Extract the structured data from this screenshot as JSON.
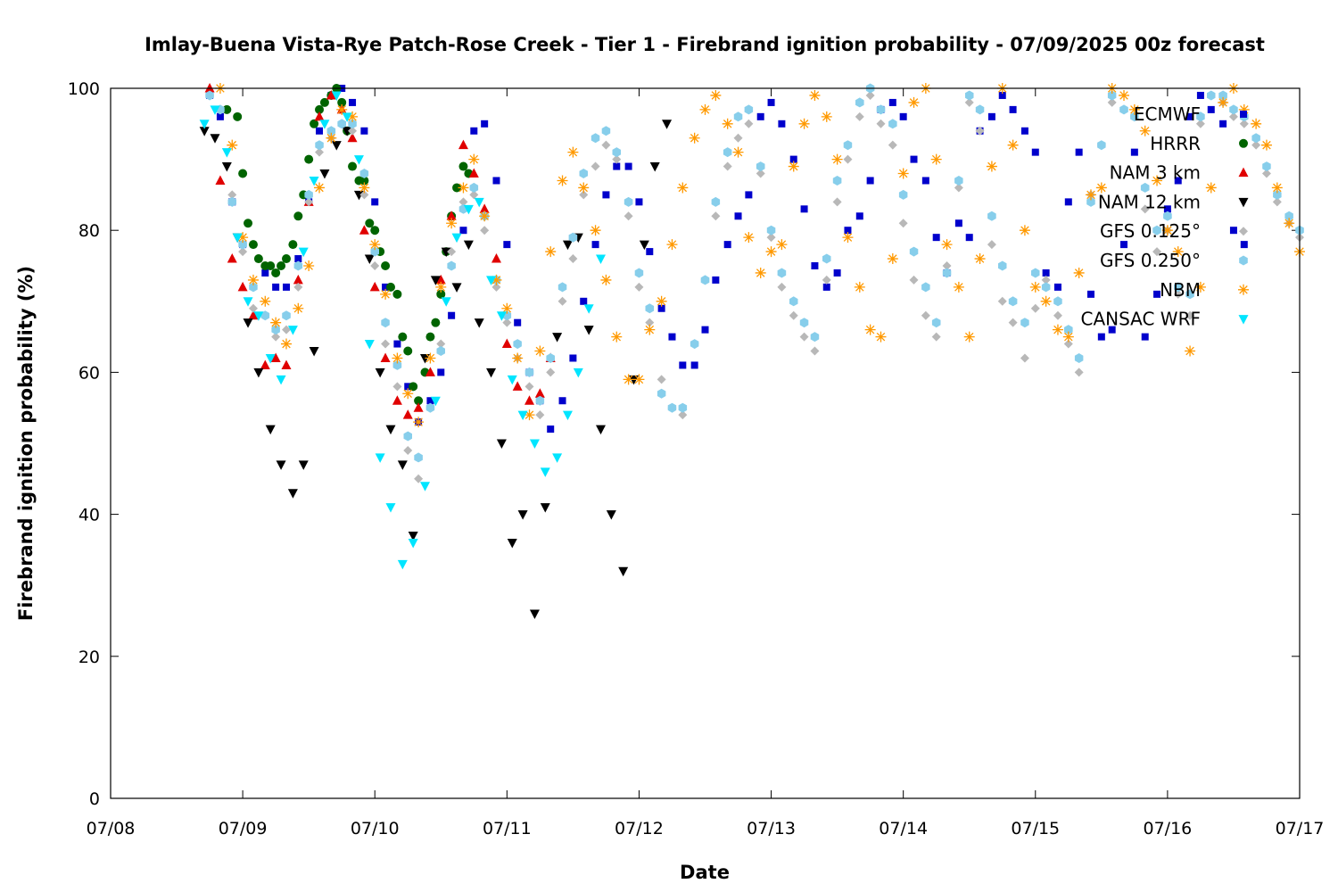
{
  "chart_data": {
    "type": "scatter",
    "title": "Imlay-Buena Vista-Rye Patch-Rose Creek - Tier 1 - Firebrand ignition probability - 07/09/2025 00z forecast",
    "xlabel": "Date",
    "ylabel": "Firebrand ignition probability (%)",
    "x_ticks": [
      "07/08",
      "07/09",
      "07/10",
      "07/11",
      "07/12",
      "07/13",
      "07/14",
      "07/15",
      "07/16",
      "07/17"
    ],
    "y_ticks": [
      "0",
      "20",
      "40",
      "60",
      "80",
      "100"
    ],
    "xlim_days": [
      0,
      9
    ],
    "ylim": [
      0,
      100
    ],
    "grid": false,
    "legend_position": "top-right",
    "series": [
      {
        "name": "ECMWF",
        "marker": "square",
        "color": "#0000cc",
        "x": [
          0.75,
          0.83,
          0.92,
          1.0,
          1.17,
          1.25,
          1.33,
          1.42,
          1.5,
          1.58,
          1.67,
          1.75,
          1.83,
          1.92,
          2.0,
          2.08,
          2.17,
          2.25,
          2.33,
          2.42,
          2.5,
          2.58,
          2.67,
          2.75,
          2.83,
          2.92,
          3.0,
          3.08,
          3.17,
          3.25,
          3.33,
          3.42,
          3.5,
          3.58,
          3.67,
          3.75,
          3.83,
          3.92,
          4.0,
          4.08,
          4.17,
          4.25,
          4.33,
          4.42,
          4.5,
          4.58,
          4.67,
          4.75,
          4.83,
          4.92,
          5.0,
          5.08,
          5.17,
          5.25,
          5.33,
          5.42,
          5.5,
          5.58,
          5.67,
          5.75,
          5.83,
          5.92,
          6.0,
          6.08,
          6.17,
          6.25,
          6.33,
          6.42,
          6.5,
          6.58,
          6.67,
          6.75,
          6.83,
          6.92,
          7.0,
          7.08,
          7.17,
          7.25,
          7.33,
          7.42,
          7.5,
          7.58,
          7.67,
          7.75,
          7.83,
          7.92,
          8.0,
          8.08,
          8.17,
          8.25,
          8.33,
          8.42,
          8.5,
          8.58
        ],
        "y": [
          99,
          96,
          84,
          78,
          74,
          72,
          72,
          76,
          84,
          94,
          99,
          100,
          98,
          94,
          84,
          72,
          64,
          58,
          53,
          56,
          60,
          68,
          80,
          94,
          95,
          87,
          78,
          67,
          60,
          56,
          52,
          56,
          62,
          70,
          78,
          85,
          89,
          89,
          84,
          77,
          69,
          65,
          61,
          61,
          66,
          73,
          78,
          82,
          85,
          96,
          98,
          95,
          90,
          83,
          75,
          72,
          74,
          80,
          82,
          87,
          97,
          98,
          96,
          90,
          87,
          79,
          74,
          81,
          79,
          94,
          96,
          99,
          97,
          94,
          91,
          74,
          72,
          84,
          91,
          71,
          65,
          66,
          78,
          91,
          65,
          71,
          83,
          87,
          96,
          99,
          97,
          95,
          80,
          78
        ]
      },
      {
        "name": "HRRR",
        "marker": "circle",
        "color": "#006400",
        "x": [
          0.88,
          0.96,
          1.0,
          1.04,
          1.08,
          1.12,
          1.17,
          1.21,
          1.25,
          1.29,
          1.33,
          1.38,
          1.42,
          1.46,
          1.5,
          1.54,
          1.58,
          1.62,
          1.67,
          1.71,
          1.75,
          1.79,
          1.83,
          1.88,
          1.92,
          1.96,
          2.0,
          2.04,
          2.08,
          2.12,
          2.17,
          2.21,
          2.25,
          2.29,
          2.33,
          2.38,
          2.42,
          2.46,
          2.5,
          2.54,
          2.58,
          2.62,
          2.67,
          2.71
        ],
        "y": [
          97,
          96,
          88,
          81,
          78,
          76,
          75,
          75,
          74,
          75,
          76,
          78,
          82,
          85,
          90,
          95,
          97,
          98,
          99,
          100,
          98,
          94,
          89,
          87,
          87,
          81,
          80,
          77,
          75,
          72,
          71,
          65,
          63,
          58,
          56,
          60,
          65,
          67,
          71,
          77,
          82,
          86,
          89,
          88
        ]
      },
      {
        "name": "NAM 3 km",
        "marker": "triangle-up",
        "color": "#e00000",
        "x": [
          0.75,
          0.83,
          0.92,
          1.0,
          1.08,
          1.17,
          1.25,
          1.33,
          1.42,
          1.5,
          1.58,
          1.67,
          1.75,
          1.83,
          1.92,
          2.0,
          2.08,
          2.17,
          2.25,
          2.33,
          2.42,
          2.5,
          2.58,
          2.67,
          2.75,
          2.83,
          2.92,
          3.0,
          3.08,
          3.17,
          3.25,
          3.33
        ],
        "y": [
          100,
          87,
          76,
          72,
          68,
          61,
          62,
          61,
          73,
          84,
          96,
          99,
          97,
          93,
          80,
          72,
          62,
          56,
          54,
          55,
          60,
          73,
          82,
          92,
          88,
          83,
          76,
          64,
          58,
          56,
          57,
          62
        ]
      },
      {
        "name": "NAM 12 km",
        "marker": "triangle-down",
        "color": "#000000",
        "x": [
          0.71,
          0.79,
          0.88,
          0.96,
          1.04,
          1.12,
          1.21,
          1.29,
          1.38,
          1.46,
          1.54,
          1.62,
          1.71,
          1.79,
          1.88,
          1.96,
          2.04,
          2.12,
          2.21,
          2.29,
          2.38,
          2.46,
          2.54,
          2.62,
          2.71,
          2.79,
          2.88,
          2.96,
          3.04,
          3.12,
          3.21,
          3.29,
          3.38,
          3.46,
          3.54,
          3.62,
          3.71,
          3.79,
          3.88,
          3.96,
          4.04,
          4.12,
          4.21
        ],
        "y": [
          94,
          93,
          89,
          79,
          67,
          60,
          52,
          47,
          43,
          47,
          63,
          88,
          92,
          94,
          85,
          76,
          60,
          52,
          47,
          37,
          62,
          73,
          77,
          72,
          78,
          67,
          60,
          50,
          36,
          40,
          26,
          41,
          65,
          78,
          79,
          66,
          52,
          40,
          32,
          59,
          78,
          89,
          95
        ]
      },
      {
        "name": "GFS 0.125°",
        "marker": "diamond",
        "color": "#b8b8b8",
        "x": [
          0.75,
          0.83,
          0.92,
          1.0,
          1.08,
          1.17,
          1.25,
          1.33,
          1.42,
          1.5,
          1.58,
          1.67,
          1.75,
          1.83,
          1.92,
          2.0,
          2.08,
          2.17,
          2.25,
          2.33,
          2.42,
          2.5,
          2.58,
          2.67,
          2.75,
          2.83,
          2.92,
          3.0,
          3.08,
          3.17,
          3.25,
          3.33,
          3.42,
          3.5,
          3.58,
          3.67,
          3.75,
          3.83,
          3.92,
          4.0,
          4.08,
          4.17,
          4.25,
          4.33,
          4.42,
          4.5,
          4.58,
          4.67,
          4.75,
          4.83,
          4.92,
          5.0,
          5.08,
          5.17,
          5.25,
          5.33,
          5.42,
          5.5,
          5.58,
          5.67,
          5.75,
          5.83,
          5.92,
          6.0,
          6.08,
          6.17,
          6.25,
          6.33,
          6.42,
          6.5,
          6.58,
          6.67,
          6.75,
          6.83,
          6.92,
          7.0,
          7.08,
          7.17,
          7.25,
          7.33,
          7.42,
          7.5,
          7.58,
          7.67,
          7.75,
          7.83,
          7.92,
          8.0,
          8.08,
          8.17,
          8.25,
          8.33,
          8.42,
          8.5,
          8.58,
          8.67,
          8.75,
          8.83,
          8.92,
          9.0
        ],
        "y": [
          99,
          97,
          85,
          77,
          69,
          68,
          65,
          66,
          72,
          84,
          91,
          93,
          95,
          94,
          85,
          75,
          64,
          58,
          49,
          45,
          55,
          64,
          77,
          84,
          85,
          80,
          72,
          67,
          62,
          58,
          54,
          60,
          70,
          76,
          85,
          89,
          92,
          90,
          82,
          72,
          67,
          59,
          55,
          54,
          64,
          73,
          82,
          89,
          93,
          95,
          88,
          79,
          72,
          68,
          65,
          63,
          73,
          84,
          90,
          96,
          99,
          95,
          92,
          81,
          73,
          68,
          65,
          75,
          86,
          98,
          94,
          78,
          70,
          67,
          62,
          69,
          73,
          68,
          64,
          60,
          85,
          92,
          98,
          97,
          96,
          83,
          77,
          80,
          71,
          68,
          95,
          99,
          98,
          96,
          95,
          92,
          88,
          84,
          81,
          79
        ]
      },
      {
        "name": "GFS 0.250°",
        "marker": "hexagon",
        "color": "#87ceeb",
        "x": [
          0.75,
          0.83,
          0.92,
          1.0,
          1.08,
          1.17,
          1.25,
          1.33,
          1.42,
          1.5,
          1.58,
          1.67,
          1.75,
          1.83,
          1.92,
          2.0,
          2.08,
          2.17,
          2.25,
          2.33,
          2.42,
          2.5,
          2.58,
          2.67,
          2.75,
          2.83,
          2.92,
          3.0,
          3.08,
          3.17,
          3.25,
          3.33,
          3.42,
          3.5,
          3.58,
          3.67,
          3.75,
          3.83,
          3.92,
          4.0,
          4.08,
          4.17,
          4.25,
          4.33,
          4.42,
          4.5,
          4.58,
          4.67,
          4.75,
          4.83,
          4.92,
          5.0,
          5.08,
          5.17,
          5.25,
          5.33,
          5.42,
          5.5,
          5.58,
          5.67,
          5.75,
          5.83,
          5.92,
          6.0,
          6.08,
          6.17,
          6.25,
          6.33,
          6.42,
          6.5,
          6.58,
          6.67,
          6.75,
          6.83,
          6.92,
          7.0,
          7.08,
          7.17,
          7.25,
          7.33,
          7.42,
          7.5,
          7.58,
          7.67,
          7.75,
          7.83,
          7.92,
          8.0,
          8.08,
          8.17,
          8.25,
          8.33,
          8.42,
          8.5,
          8.58,
          8.67,
          8.75,
          8.83,
          8.92,
          9.0
        ],
        "y": [
          99,
          97,
          84,
          78,
          72,
          68,
          66,
          68,
          75,
          85,
          92,
          94,
          95,
          95,
          88,
          77,
          67,
          61,
          51,
          48,
          55,
          63,
          75,
          83,
          86,
          82,
          73,
          68,
          64,
          60,
          56,
          62,
          72,
          79,
          88,
          93,
          94,
          91,
          84,
          74,
          69,
          57,
          55,
          55,
          64,
          73,
          84,
          91,
          96,
          97,
          89,
          80,
          74,
          70,
          67,
          65,
          76,
          87,
          92,
          98,
          100,
          97,
          95,
          85,
          77,
          72,
          67,
          74,
          87,
          99,
          97,
          82,
          75,
          70,
          67,
          74,
          72,
          70,
          66,
          62,
          84,
          92,
          99,
          97,
          96,
          86,
          80,
          82,
          72,
          71,
          96,
          99,
          99,
          97,
          96,
          93,
          89,
          85,
          82,
          80
        ]
      },
      {
        "name": "NBM",
        "marker": "star",
        "color": "#ff9900",
        "x": [
          0.83,
          0.92,
          1.0,
          1.08,
          1.17,
          1.25,
          1.33,
          1.42,
          1.5,
          1.58,
          1.67,
          1.75,
          1.83,
          1.92,
          2.0,
          2.08,
          2.17,
          2.25,
          2.33,
          2.42,
          2.5,
          2.58,
          2.67,
          2.75,
          2.83,
          2.92,
          3.0,
          3.08,
          3.17,
          3.25,
          3.33,
          3.42,
          3.5,
          3.58,
          3.67,
          3.75,
          3.83,
          3.92,
          4.0,
          4.08,
          4.17,
          4.25,
          4.33,
          4.42,
          4.5,
          4.58,
          4.67,
          4.75,
          4.83,
          4.92,
          5.0,
          5.08,
          5.17,
          5.25,
          5.33,
          5.42,
          5.5,
          5.58,
          5.67,
          5.75,
          5.83,
          5.92,
          6.0,
          6.08,
          6.17,
          6.25,
          6.33,
          6.42,
          6.5,
          6.58,
          6.67,
          6.75,
          6.83,
          6.92,
          7.0,
          7.08,
          7.17,
          7.25,
          7.33,
          7.42,
          7.5,
          7.58,
          7.67,
          7.75,
          7.83,
          7.92,
          8.0,
          8.08,
          8.17,
          8.25,
          8.33,
          8.42,
          8.5,
          8.58,
          8.67,
          8.75,
          8.83,
          8.92,
          9.0
        ],
        "y": [
          100,
          92,
          79,
          73,
          70,
          67,
          64,
          69,
          75,
          86,
          93,
          97,
          96,
          86,
          78,
          71,
          62,
          57,
          53,
          62,
          72,
          81,
          86,
          90,
          82,
          73,
          69,
          62,
          54,
          63,
          77,
          87,
          91,
          86,
          80,
          73,
          65,
          59,
          59,
          66,
          70,
          78,
          86,
          93,
          97,
          99,
          95,
          91,
          79,
          74,
          77,
          78,
          89,
          95,
          99,
          96,
          90,
          79,
          72,
          66,
          65,
          76,
          88,
          98,
          100,
          90,
          78,
          72,
          65,
          76,
          89,
          100,
          92,
          80,
          72,
          70,
          66,
          65,
          74,
          85,
          86,
          100,
          99,
          97,
          94,
          87,
          80,
          77,
          63,
          72,
          86,
          98,
          100,
          97,
          95,
          92,
          86,
          81,
          77
        ]
      },
      {
        "name": "CANSAC WRF",
        "marker": "triangle-down",
        "color": "#00e5ff",
        "x": [
          0.71,
          0.79,
          0.88,
          0.96,
          1.04,
          1.12,
          1.21,
          1.29,
          1.38,
          1.46,
          1.54,
          1.62,
          1.71,
          1.79,
          1.88,
          1.96,
          2.04,
          2.12,
          2.21,
          2.29,
          2.38,
          2.46,
          2.54,
          2.62,
          2.71,
          2.79,
          2.88,
          2.96,
          3.04,
          3.12,
          3.21,
          3.29,
          3.38,
          3.46,
          3.54,
          3.62,
          3.71
        ],
        "y": [
          95,
          97,
          91,
          79,
          70,
          68,
          62,
          59,
          66,
          77,
          87,
          95,
          99,
          96,
          90,
          64,
          48,
          41,
          33,
          36,
          44,
          56,
          70,
          79,
          83,
          84,
          73,
          68,
          59,
          54,
          50,
          46,
          48,
          54,
          60,
          69,
          76
        ]
      }
    ]
  }
}
